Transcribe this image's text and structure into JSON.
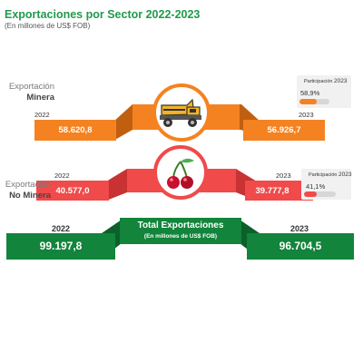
{
  "header": {
    "title": "Exportaciones por Sector 2022-2023",
    "subtitle": "(En millones de US$ FOB)"
  },
  "colors": {
    "orange": "#f58220",
    "red": "#f04a4a",
    "green": "#12843b"
  },
  "mining": {
    "label_line1": "Exportación",
    "label_line2": "Minera",
    "year_a": "2022",
    "year_b": "2023",
    "value_a": "58.620,8",
    "value_b": "56.926,7",
    "share_title": "Participación",
    "share_year": "2023",
    "share_pct": "58,9%",
    "share_value": 0.589,
    "icon": "dump-truck-icon"
  },
  "non_mining": {
    "label_line1": "Exportación",
    "label_line2": "No Minera",
    "year_a": "2022",
    "year_b": "2023",
    "value_a": "40.577,0",
    "value_b": "39.777,8",
    "share_title": "Participación",
    "share_year": "2023",
    "share_pct": "41,1%",
    "share_value": 0.411,
    "icon": "cherry-icon"
  },
  "total": {
    "year_a": "2022",
    "year_b": "2023",
    "value_a": "99.197,8",
    "value_b": "96.704,5",
    "title": "Total Exportaciones",
    "subtitle": "(En millones de US$ FOB)"
  }
}
